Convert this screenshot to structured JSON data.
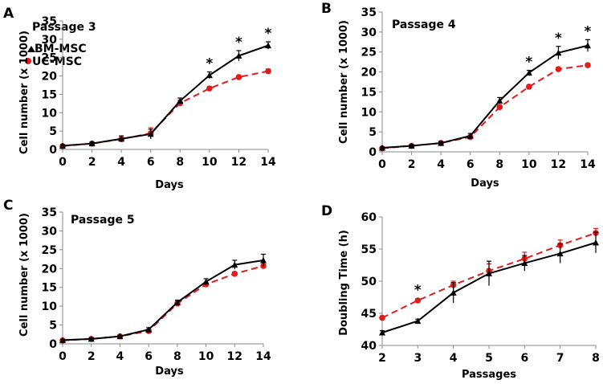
{
  "colors": {
    "bm": "#000000",
    "uc": "#e21b1b"
  },
  "legend": {
    "bm": "BM-MSC",
    "uc": "UC-MSC"
  },
  "chart_data": [
    {
      "panel": "A",
      "type": "line",
      "title": "Passage 3",
      "xlabel": "Days",
      "ylabel": "Cell number (x 1000)",
      "x": [
        0,
        2,
        4,
        6,
        8,
        10,
        12,
        14
      ],
      "xticks": [
        0,
        2,
        4,
        6,
        8,
        10,
        12,
        14
      ],
      "yticks": [
        0,
        5,
        10,
        15,
        20,
        25,
        30,
        35
      ],
      "xlim": [
        0,
        14
      ],
      "ylim": [
        0,
        35
      ],
      "series": [
        {
          "key": "bm",
          "name": "BM-MSC",
          "values": [
            1.0,
            1.6,
            2.9,
            4.2,
            13.2,
            20.2,
            25.5,
            28.3
          ],
          "errors": [
            0.3,
            0.4,
            0.8,
            1.3,
            0.8,
            0.9,
            1.4,
            1.0
          ]
        },
        {
          "key": "uc",
          "name": "UC-MSC",
          "values": [
            0.9,
            1.6,
            2.8,
            4.4,
            12.6,
            16.6,
            19.7,
            21.3
          ],
          "errors": [
            0.3,
            0.3,
            0.5,
            1.5,
            0.8,
            0.5,
            0.4,
            0.6
          ]
        }
      ],
      "significant_x": [
        10,
        12,
        14
      ],
      "star_label": "*"
    },
    {
      "panel": "B",
      "type": "line",
      "title": "Passage 4",
      "xlabel": "Days",
      "ylabel": "Cell number (x 1000)",
      "x": [
        0,
        2,
        4,
        6,
        8,
        10,
        12,
        14
      ],
      "xticks": [
        0,
        2,
        4,
        6,
        8,
        10,
        12,
        14
      ],
      "yticks": [
        0,
        5,
        10,
        15,
        20,
        25,
        30,
        35
      ],
      "xlim": [
        0,
        14
      ],
      "ylim": [
        0,
        35
      ],
      "series": [
        {
          "key": "bm",
          "name": "BM-MSC",
          "values": [
            1.0,
            1.5,
            2.2,
            4.0,
            12.8,
            19.8,
            24.8,
            26.6
          ],
          "errors": [
            0.2,
            0.3,
            0.4,
            0.6,
            0.8,
            0.6,
            1.6,
            1.5
          ]
        },
        {
          "key": "uc",
          "name": "UC-MSC",
          "values": [
            0.9,
            1.5,
            2.2,
            3.7,
            11.2,
            16.3,
            20.7,
            21.7
          ],
          "errors": [
            0.2,
            0.3,
            0.3,
            0.5,
            0.6,
            0.4,
            0.5,
            0.4
          ]
        }
      ],
      "significant_x": [
        10,
        12,
        14
      ],
      "star_label": "*"
    },
    {
      "panel": "C",
      "type": "line",
      "title": "Passage 5",
      "xlabel": "Days",
      "ylabel": "Cell number (x 1000)",
      "x": [
        0,
        2,
        4,
        6,
        8,
        10,
        12,
        14
      ],
      "xticks": [
        0,
        2,
        4,
        6,
        8,
        10,
        12,
        14
      ],
      "yticks": [
        0,
        5,
        10,
        15,
        20,
        25,
        30,
        35
      ],
      "xlim": [
        0,
        14
      ],
      "ylim": [
        0,
        35
      ],
      "series": [
        {
          "key": "bm",
          "name": "BM-MSC",
          "values": [
            1.0,
            1.3,
            2.0,
            3.8,
            11.0,
            16.5,
            21.0,
            22.2
          ],
          "errors": [
            0.2,
            0.3,
            0.3,
            0.5,
            0.6,
            0.8,
            1.2,
            1.6
          ]
        },
        {
          "key": "uc",
          "name": "UC-MSC",
          "values": [
            0.9,
            1.3,
            2.0,
            3.4,
            10.7,
            15.8,
            18.6,
            20.7
          ],
          "errors": [
            0.2,
            0.2,
            0.3,
            0.4,
            0.6,
            0.5,
            0.5,
            0.5
          ]
        }
      ],
      "significant_x": [],
      "star_label": "*"
    },
    {
      "panel": "D",
      "type": "line",
      "title": "",
      "xlabel": "Passages",
      "ylabel": "Doubling Time (h)",
      "x": [
        2,
        3,
        4,
        5,
        6,
        7,
        8
      ],
      "xticks": [
        2,
        3,
        4,
        5,
        6,
        7,
        8
      ],
      "yticks": [
        40,
        45,
        50,
        55,
        60
      ],
      "xlim": [
        2,
        8
      ],
      "ylim": [
        40,
        60
      ],
      "series": [
        {
          "key": "bm",
          "name": "BM-MSC",
          "values": [
            42.0,
            43.8,
            48.2,
            51.2,
            52.8,
            54.3,
            56.0
          ],
          "errors": [
            0.3,
            0.3,
            1.6,
            1.9,
            1.2,
            1.5,
            1.6
          ]
        },
        {
          "key": "uc",
          "name": "UC-MSC",
          "values": [
            44.3,
            47.0,
            49.4,
            51.6,
            53.5,
            55.6,
            57.5
          ],
          "errors": [
            0.3,
            0.3,
            0.6,
            1.1,
            1.0,
            0.8,
            0.7
          ]
        }
      ],
      "significant_x": [
        3
      ],
      "star_label": "*"
    }
  ]
}
